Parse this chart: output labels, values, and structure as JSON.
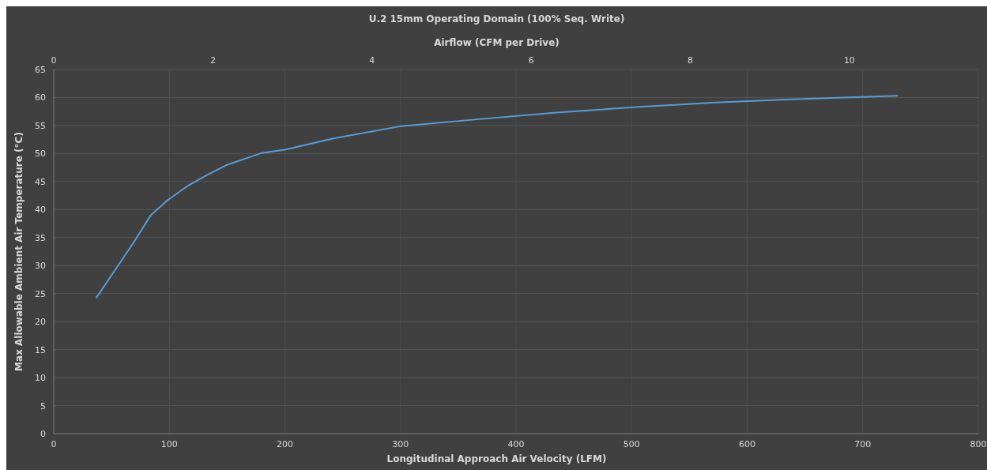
{
  "chart_data": {
    "type": "line",
    "title": "U.2 15mm Operating Domain (100% Seq. Write)",
    "xlabel": "Longitudinal Approach Air Velocity (LFM)",
    "ylabel": "Max Allowable Ambient Air Temperature  (°C)",
    "x2label": "Airflow (CFM per Drive)",
    "xlim": [
      0,
      800
    ],
    "xticks": [
      0,
      100,
      200,
      300,
      400,
      500,
      600,
      700,
      800
    ],
    "ylim": [
      0,
      65
    ],
    "yticks": [
      0,
      5,
      10,
      15,
      20,
      25,
      30,
      35,
      40,
      45,
      50,
      55,
      60,
      65
    ],
    "x2lim": [
      0,
      11.62
    ],
    "x2ticks": [
      0,
      2,
      4,
      6,
      8,
      10
    ],
    "grid": true,
    "marker": "none",
    "line_style": "solid",
    "series": [
      {
        "color": "#5b9bd5",
        "x": [
          37,
          56,
          70,
          84,
          98,
          115,
          132,
          149,
          180,
          200,
          242,
          301,
          366,
          435,
          504,
          573,
          642,
          730
        ],
        "values": [
          24.3,
          30.1,
          34.4,
          39.0,
          41.6,
          44.1,
          46.1,
          47.9,
          50.1,
          50.7,
          52.7,
          54.9,
          56.1,
          57.3,
          58.3,
          59.1,
          59.7,
          60.3
        ]
      }
    ]
  }
}
